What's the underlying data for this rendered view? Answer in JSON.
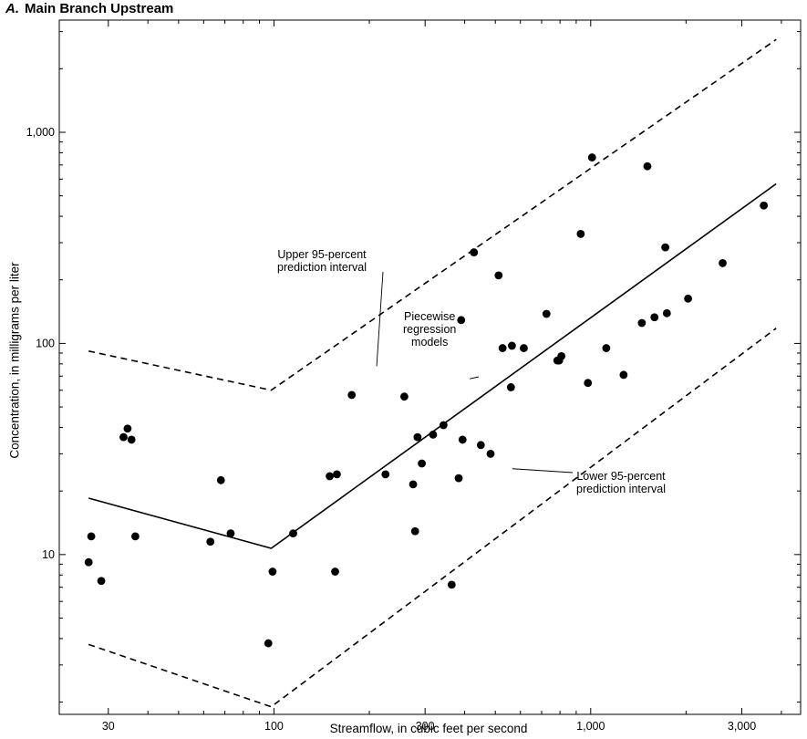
{
  "panel": {
    "letter": "A.",
    "title": "Main Branch Upstream"
  },
  "chart_data": {
    "type": "scatter",
    "title": "A. Main Branch Upstream",
    "xlabel": "Streamflow, in cubic feet per second",
    "ylabel": "Concentration, in milligrams per liter",
    "x_scale": "log",
    "y_scale": "log",
    "xlim": [
      21,
      4600
    ],
    "ylim": [
      1.75,
      3400
    ],
    "x_ticks": [
      30,
      100,
      300,
      1000,
      3000
    ],
    "x_tick_labels": [
      "30",
      "100",
      "300",
      "1,000",
      "3,000"
    ],
    "y_ticks": [
      10,
      100,
      1000
    ],
    "y_tick_labels": [
      "10",
      "100",
      "1,000"
    ],
    "grid": false,
    "legend": "none",
    "series": [
      {
        "type": "scatter",
        "points": [
          [
            26,
            9.2
          ],
          [
            26.5,
            12.2
          ],
          [
            28.5,
            7.5
          ],
          [
            33.5,
            36
          ],
          [
            34.5,
            39.5
          ],
          [
            35.5,
            35
          ],
          [
            36.5,
            12.2
          ],
          [
            63,
            11.5
          ],
          [
            68,
            22.5
          ],
          [
            73,
            12.6
          ],
          [
            96,
            3.8
          ],
          [
            99,
            8.3
          ],
          [
            115,
            12.6
          ],
          [
            150,
            23.5
          ],
          [
            156,
            8.3
          ],
          [
            158,
            24
          ],
          [
            176,
            57
          ],
          [
            225,
            24
          ],
          [
            258,
            56
          ],
          [
            275,
            21.5
          ],
          [
            279,
            12.9
          ],
          [
            284,
            36
          ],
          [
            293,
            27
          ],
          [
            318,
            37
          ],
          [
            343,
            41
          ],
          [
            364,
            7.2
          ],
          [
            383,
            23
          ],
          [
            390,
            129
          ],
          [
            394,
            35
          ],
          [
            428,
            270
          ],
          [
            450,
            33
          ],
          [
            483,
            30
          ],
          [
            512,
            210
          ],
          [
            527,
            95
          ],
          [
            560,
            62
          ],
          [
            564,
            97.5
          ],
          [
            615,
            95
          ],
          [
            725,
            138
          ],
          [
            785,
            83
          ],
          [
            795,
            83
          ],
          [
            808,
            87
          ],
          [
            930,
            330
          ],
          [
            980,
            65
          ],
          [
            1010,
            760
          ],
          [
            1120,
            95
          ],
          [
            1270,
            71
          ],
          [
            1450,
            125
          ],
          [
            1510,
            690
          ],
          [
            1590,
            133
          ],
          [
            1720,
            285
          ],
          [
            1740,
            139
          ],
          [
            2030,
            163
          ],
          [
            2610,
            240
          ],
          [
            3520,
            450
          ]
        ]
      },
      {
        "type": "line",
        "style": "solid",
        "points": [
          [
            26,
            18.5
          ],
          [
            98,
            10.7
          ],
          [
            3850,
            570
          ]
        ]
      },
      {
        "type": "line",
        "style": "dashed",
        "points": [
          [
            26,
            92
          ],
          [
            98,
            60
          ],
          [
            3850,
            2750
          ]
        ]
      },
      {
        "type": "line",
        "style": "dashed",
        "points": [
          [
            26,
            3.75
          ],
          [
            98,
            1.9
          ],
          [
            3850,
            118
          ]
        ]
      }
    ],
    "annotations": [
      {
        "lines": [
          "Upper 95-percent",
          "prediction interval"
        ]
      },
      {
        "lines": [
          "Piecewise",
          "regression",
          "models"
        ]
      },
      {
        "lines": [
          "Lower 95-percent",
          "prediction interval"
        ]
      }
    ]
  }
}
